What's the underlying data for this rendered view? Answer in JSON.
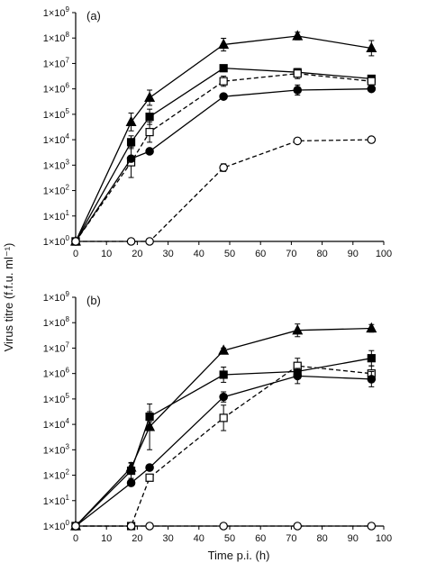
{
  "figure": {
    "ylabel": "Virus titre (f.f.u. ml⁻¹)",
    "xlabel": "Time p.i. (h)"
  },
  "chart_data": [
    {
      "type": "line",
      "panel_label": "(a)",
      "y_scale": "log",
      "ylim": [
        1,
        1000000000
      ],
      "xlim": [
        0,
        100
      ],
      "x_ticks": [
        "0",
        "10",
        "20",
        "30",
        "40",
        "50",
        "60",
        "70",
        "80",
        "90",
        "100"
      ],
      "y_ticks": [
        {
          "base": "1×10",
          "exp": "0"
        },
        {
          "base": "1×10",
          "exp": "1"
        },
        {
          "base": "1×10",
          "exp": "2"
        },
        {
          "base": "1×10",
          "exp": "3"
        },
        {
          "base": "1×10",
          "exp": "4"
        },
        {
          "base": "1×10",
          "exp": "5"
        },
        {
          "base": "1×10",
          "exp": "6"
        },
        {
          "base": "1×10",
          "exp": "7"
        },
        {
          "base": "1×10",
          "exp": "8"
        },
        {
          "base": "1×10",
          "exp": "9"
        }
      ],
      "grid": false,
      "series": [
        {
          "marker": "triangle-filled",
          "dash": "solid",
          "x": [
            0,
            18,
            24,
            48,
            72,
            96
          ],
          "y": [
            1,
            50000,
            450000,
            55000000,
            120000000,
            40000000
          ],
          "err": [
            0,
            0.35,
            0.3,
            0.25,
            0.15,
            0.3
          ]
        },
        {
          "marker": "square-filled",
          "dash": "solid",
          "x": [
            0,
            18,
            24,
            48,
            72,
            96
          ],
          "y": [
            1,
            8000,
            80000,
            6500000,
            4500000,
            2500000
          ],
          "err": [
            0,
            0.25,
            0.3,
            0.1,
            0.1,
            0.1
          ]
        },
        {
          "marker": "square-open",
          "dash": "dashed",
          "x": [
            0,
            18,
            24,
            48,
            72,
            96
          ],
          "y": [
            1,
            1300,
            20000,
            2000000,
            4000000,
            2000000
          ],
          "err": [
            0,
            0.6,
            0.4,
            0.2,
            0.2,
            0.2
          ]
        },
        {
          "marker": "circle-filled",
          "dash": "solid",
          "x": [
            0,
            18,
            24,
            48,
            72,
            96
          ],
          "y": [
            1,
            1800,
            3500,
            500000,
            900000,
            1000000
          ],
          "err": [
            0,
            0,
            0,
            0,
            0.2,
            0
          ]
        },
        {
          "marker": "circle-open",
          "dash": "dashed",
          "x": [
            0,
            18,
            24,
            48,
            72,
            96
          ],
          "y": [
            1,
            1,
            1,
            800,
            9000,
            10000
          ],
          "err": [
            0,
            0,
            0,
            0.15,
            0,
            0
          ]
        }
      ]
    },
    {
      "type": "line",
      "panel_label": "(b)",
      "y_scale": "log",
      "ylim": [
        1,
        1000000000
      ],
      "xlim": [
        0,
        100
      ],
      "x_ticks": [
        "0",
        "10",
        "20",
        "30",
        "40",
        "50",
        "60",
        "70",
        "80",
        "90",
        "100"
      ],
      "y_ticks": [
        {
          "base": "1×10",
          "exp": "0"
        },
        {
          "base": "1×10",
          "exp": "1"
        },
        {
          "base": "1×10",
          "exp": "2"
        },
        {
          "base": "1×10",
          "exp": "3"
        },
        {
          "base": "1×10",
          "exp": "4"
        },
        {
          "base": "1×10",
          "exp": "5"
        },
        {
          "base": "1×10",
          "exp": "6"
        },
        {
          "base": "1×10",
          "exp": "7"
        },
        {
          "base": "1×10",
          "exp": "8"
        },
        {
          "base": "1×10",
          "exp": "9"
        }
      ],
      "grid": false,
      "series": [
        {
          "marker": "triangle-filled",
          "dash": "solid",
          "x": [
            0,
            18,
            24,
            48,
            72,
            96
          ],
          "y": [
            1,
            200,
            8000,
            8000000,
            50000000,
            60000000
          ],
          "err": [
            0,
            0.2,
            0.9,
            0.1,
            0.25,
            0.15
          ]
        },
        {
          "marker": "square-filled",
          "dash": "solid",
          "x": [
            0,
            18,
            24,
            48,
            72,
            96
          ],
          "y": [
            1,
            150,
            20000,
            900000,
            1200000,
            4000000
          ],
          "err": [
            0,
            0.3,
            0.2,
            0.3,
            0.2,
            0.3
          ]
        },
        {
          "marker": "square-open",
          "dash": "dashed",
          "x": [
            0,
            18,
            24,
            48,
            72,
            96
          ],
          "y": [
            1,
            1,
            80,
            18000,
            2000000,
            1000000
          ],
          "err": [
            0,
            0,
            0.1,
            0.5,
            0.3,
            0.3
          ]
        },
        {
          "marker": "circle-filled",
          "dash": "solid",
          "x": [
            0,
            18,
            24,
            48,
            72,
            96
          ],
          "y": [
            1,
            50,
            200,
            120000,
            800000,
            600000
          ],
          "err": [
            0,
            0,
            0,
            0.2,
            0.3,
            0.3
          ]
        },
        {
          "marker": "circle-open",
          "dash": "dashed",
          "x": [
            0,
            18,
            24,
            48,
            72,
            96
          ],
          "y": [
            1,
            1,
            1,
            1,
            1,
            1
          ],
          "err": [
            0,
            0,
            0,
            0,
            0,
            0
          ]
        }
      ]
    }
  ]
}
